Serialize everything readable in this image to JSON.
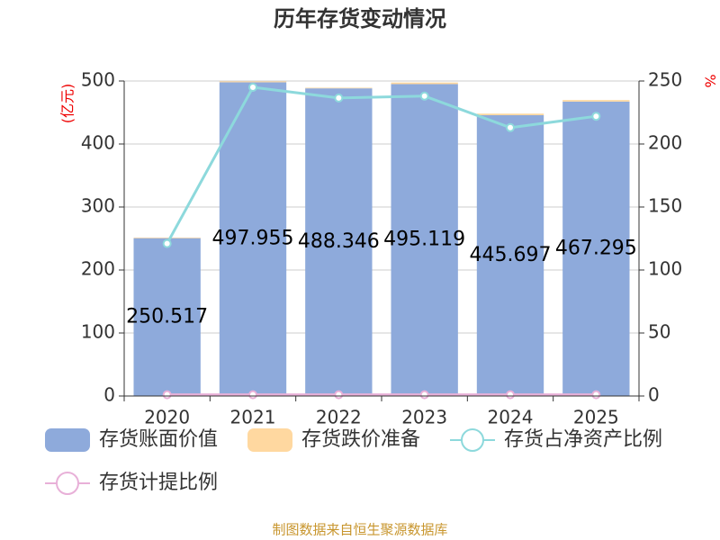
{
  "chart_data": {
    "type": "bar",
    "title": "历年存货变动情况",
    "y_label": "(亿元)",
    "y2_label": "%",
    "source": "制图数据来自恒生聚源数据库",
    "stacked": true,
    "grid": true,
    "categories": [
      "2020",
      "2021",
      "2022",
      "2023",
      "2024",
      "2025"
    ],
    "ylim": [
      0,
      500
    ],
    "yticks": [
      0,
      100,
      200,
      300,
      400,
      500
    ],
    "y2lim": [
      0,
      250
    ],
    "y2ticks": [
      0,
      50,
      100,
      150,
      200,
      250
    ],
    "series": [
      {
        "name": "存货账面价值",
        "type": "bar",
        "color": "#8eaadb",
        "values": [
          250.517,
          497.955,
          488.346,
          495.119,
          445.697,
          467.295
        ],
        "show_labels": true
      },
      {
        "name": "存货跌价准备",
        "type": "bar",
        "color": "#ffd8a0",
        "values": [
          1,
          1.5,
          1,
          2.5,
          2.5,
          2.5
        ]
      },
      {
        "name": "存货占净资产比例",
        "type": "line",
        "axis": "y2",
        "color": "#8dd9dc",
        "values": [
          121,
          245,
          236.5,
          238,
          213,
          222
        ]
      },
      {
        "name": "存货计提比例",
        "type": "line",
        "axis": "y2",
        "color": "#e8b0d8",
        "values": [
          1,
          1,
          1,
          1,
          1,
          1
        ]
      }
    ]
  }
}
